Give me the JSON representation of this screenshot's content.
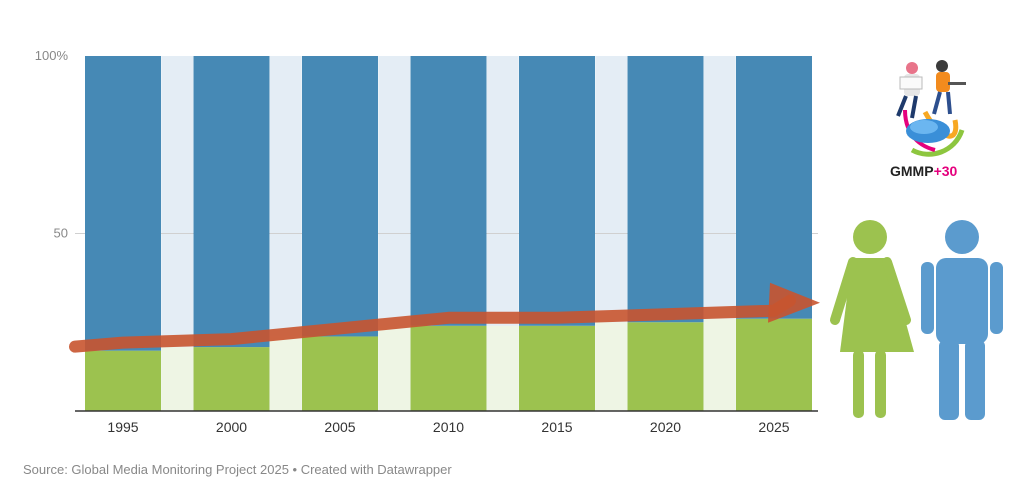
{
  "chart_data": {
    "type": "bar",
    "stacked": true,
    "categories": [
      "1995",
      "2000",
      "2005",
      "2010",
      "2015",
      "2020",
      "2025"
    ],
    "series": [
      {
        "values": [
          17,
          18,
          21,
          24,
          24,
          25,
          26
        ],
        "color": "#9cc24f"
      },
      {
        "values": [
          83,
          82,
          79,
          76,
          76,
          75,
          74
        ],
        "color": "#4689b5"
      }
    ],
    "ylim": [
      0,
      100
    ],
    "y_ticks": [
      {
        "value": 50,
        "label": "50"
      },
      {
        "value": 100,
        "label": "100%"
      }
    ],
    "grid": true,
    "background_stripes": true,
    "trend_arrow": {
      "color": "#c8542f"
    }
  },
  "logo": {
    "text_main": "GMMP",
    "text_accent": "+30",
    "accent_color": "#e5007d"
  },
  "figures": {
    "woman_color": "#9cc24f",
    "man_color": "#5b9bce"
  },
  "source": "Source: Global Media Monitoring Project 2025 • Created with Datawrapper"
}
